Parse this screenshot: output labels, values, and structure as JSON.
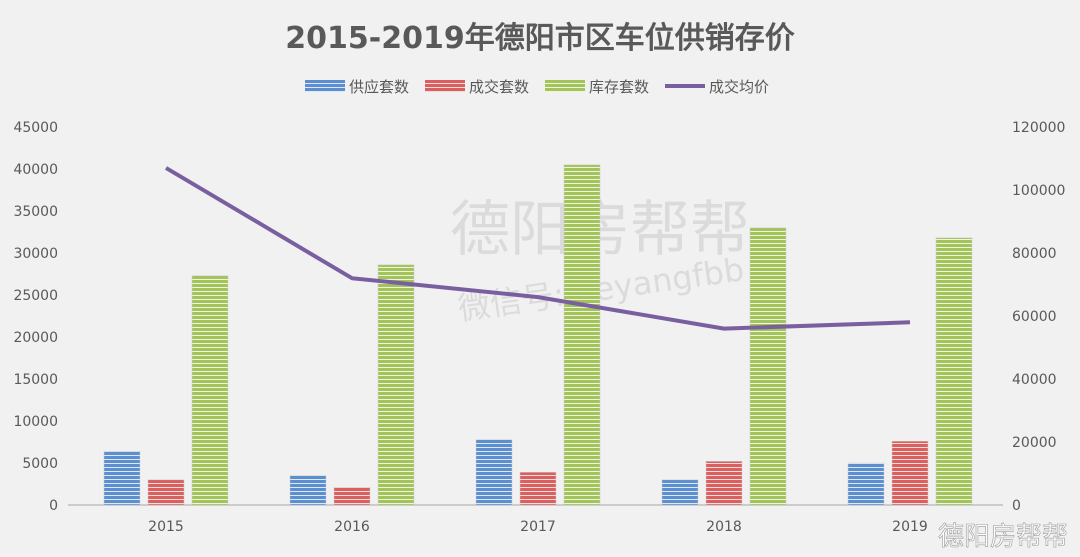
{
  "chart_data": {
    "type": "bar",
    "title": "2015-2019年德阳市区车位供销存价",
    "categories": [
      "2015",
      "2016",
      "2017",
      "2018",
      "2019"
    ],
    "series": [
      {
        "name": "供应套数",
        "type": "bar",
        "axis": "left",
        "color": "#5b8fd0",
        "values": [
          6400,
          3500,
          7800,
          3000,
          5000
        ]
      },
      {
        "name": "成交套数",
        "type": "bar",
        "axis": "left",
        "color": "#d9605f",
        "values": [
          3000,
          2100,
          3900,
          5200,
          7600
        ]
      },
      {
        "name": "库存套数",
        "type": "bar",
        "axis": "left",
        "color": "#a3c45a",
        "values": [
          27300,
          28600,
          40500,
          33000,
          31800
        ]
      },
      {
        "name": "成交均价",
        "type": "line",
        "axis": "right",
        "color": "#7a5fa0",
        "values": [
          107000,
          72000,
          66000,
          56000,
          58000
        ]
      }
    ],
    "y_left": {
      "range": [
        0,
        45000
      ],
      "ticks": [
        0,
        5000,
        10000,
        15000,
        20000,
        25000,
        30000,
        35000,
        40000,
        45000
      ]
    },
    "y_right": {
      "range": [
        0,
        120000
      ],
      "ticks": [
        0,
        20000,
        40000,
        60000,
        80000,
        100000,
        120000
      ]
    },
    "grid": false,
    "legend_position": "top"
  },
  "watermark": {
    "brand": "德阳房帮帮",
    "wechat": "微信号: deyangfbb"
  }
}
